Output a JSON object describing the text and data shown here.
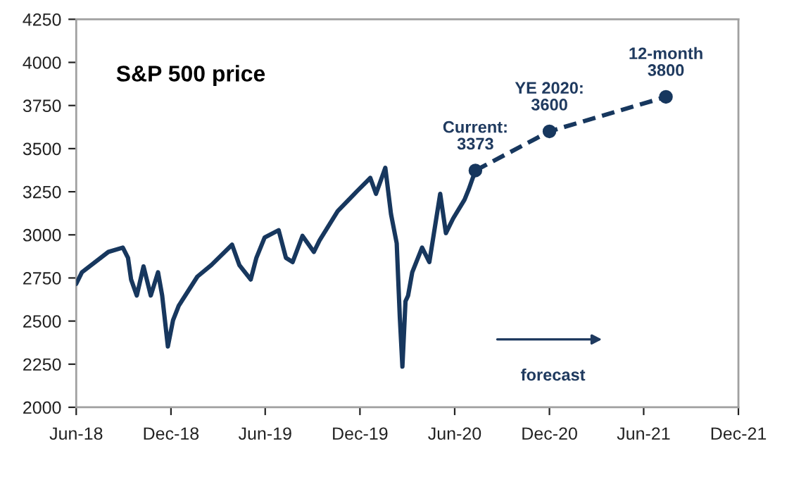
{
  "chart_data": {
    "type": "line",
    "title": "S&P 500 price",
    "x": [
      "2018-06-01",
      "2018-06-12",
      "2018-08-02",
      "2018-08-30",
      "2018-09-09",
      "2018-09-15",
      "2018-09-26",
      "2018-10-09",
      "2018-10-23",
      "2018-11-06",
      "2018-11-14",
      "2018-11-25",
      "2018-12-05",
      "2018-12-16",
      "2019-01-21",
      "2019-02-17",
      "2019-03-29",
      "2019-04-12",
      "2019-05-04",
      "2019-05-15",
      "2019-05-31",
      "2019-06-27",
      "2019-07-11",
      "2019-07-24",
      "2019-08-12",
      "2019-09-03",
      "2019-09-14",
      "2019-10-19",
      "2019-11-23",
      "2019-12-21",
      "2020-01-01",
      "2020-01-19",
      "2020-01-30",
      "2020-02-10",
      "2020-02-16",
      "2020-02-21",
      "2020-02-27",
      "2020-03-03",
      "2020-03-11",
      "2020-03-30",
      "2020-04-13",
      "2020-05-04",
      "2020-05-15",
      "2020-05-29",
      "2020-06-20",
      "2020-06-28",
      "2020-07-11"
    ],
    "series": [
      {
        "color": "#17375e",
        "line_style": "solid",
        "marker": "none",
        "values": [
          2716,
          2783,
          2901,
          2926,
          2867,
          2741,
          2648,
          2817,
          2648,
          2783,
          2648,
          2353,
          2505,
          2589,
          2758,
          2825,
          2943,
          2825,
          2741,
          2867,
          2985,
          3027,
          2867,
          2842,
          2994,
          2901,
          2968,
          3137,
          3246,
          3330,
          3238,
          3389,
          3120,
          2951,
          2522,
          2236,
          2615,
          2648,
          2783,
          2926,
          2842,
          3238,
          3010,
          3095,
          3204,
          3263,
          3373
        ]
      },
      {
        "color": "#17375e",
        "line_style": "dashed",
        "marker": "circle",
        "x": [
          "2020-07-11",
          "2020-12-01",
          "2021-07-14"
        ],
        "values": [
          3373,
          3600,
          3800
        ]
      }
    ],
    "xlim": [
      "2018-06-01",
      "2021-12-01"
    ],
    "xticks": [
      {
        "value": "2018-06-01",
        "label": "Jun-18"
      },
      {
        "value": "2018-12-01",
        "label": "Dec-18"
      },
      {
        "value": "2019-06-01",
        "label": "Jun-19"
      },
      {
        "value": "2019-12-01",
        "label": "Dec-19"
      },
      {
        "value": "2020-06-01",
        "label": "Jun-20"
      },
      {
        "value": "2020-12-01",
        "label": "Dec-20"
      },
      {
        "value": "2021-06-01",
        "label": "Jun-21"
      },
      {
        "value": "2021-12-01",
        "label": "Dec-21"
      }
    ],
    "ylim": [
      2000,
      4250
    ],
    "yticks": [
      2000,
      2250,
      2500,
      2750,
      3000,
      3250,
      3500,
      3750,
      4000,
      4250
    ],
    "grid": false,
    "legend": false,
    "annotations": [
      {
        "text": "Current:\n3373",
        "x": "2020-07-11",
        "y": 3373
      },
      {
        "text": "YE 2020:\n3600",
        "x": "2020-12-01",
        "y": 3600
      },
      {
        "text": "12-month\n3800",
        "x": "2021-07-14",
        "y": 3800
      },
      "forecast"
    ]
  }
}
